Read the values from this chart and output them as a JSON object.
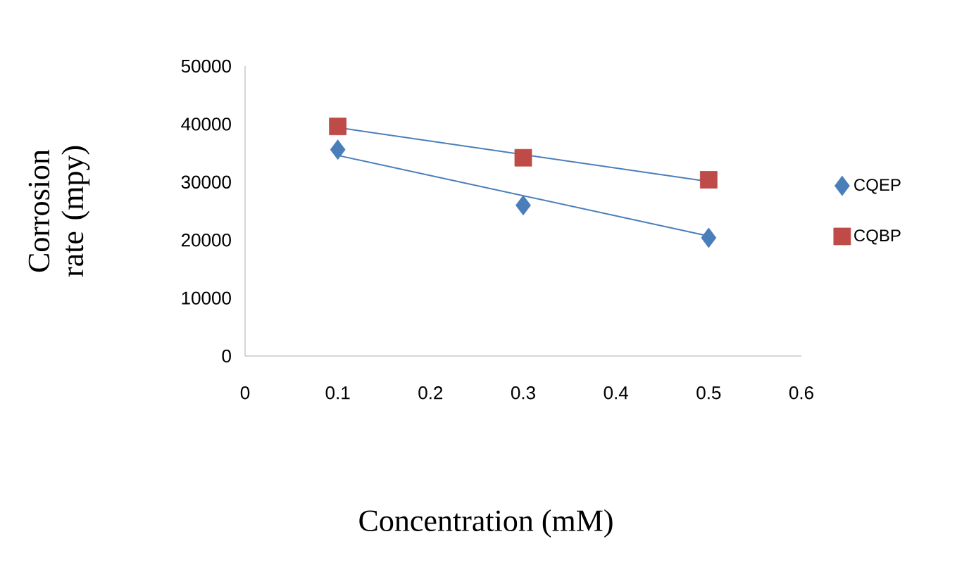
{
  "chart_data": {
    "type": "scatter",
    "xlabel": "Concentration (mM)",
    "ylabel": "Corrosion rate (mpy)",
    "xlim": [
      0,
      0.6
    ],
    "xticks": [
      0,
      0.1,
      0.2,
      0.3,
      0.4,
      0.5,
      0.6
    ],
    "ylim": [
      0,
      50000
    ],
    "yticks": [
      0,
      10000,
      20000,
      30000,
      40000,
      50000
    ],
    "grid": false,
    "legend": "right",
    "series": [
      {
        "name": "CQEP",
        "color": "#4a7ebb",
        "marker": "diamond",
        "x": [
          0.1,
          0.3,
          0.5
        ],
        "values": [
          35600,
          26000,
          20400
        ]
      },
      {
        "name": "CQBP",
        "color": "#be4b48",
        "marker": "square",
        "x": [
          0.1,
          0.3,
          0.5
        ],
        "values": [
          39600,
          34200,
          30400
        ]
      },
      {
        "type": "line",
        "color": "#4a7ebb",
        "marker": "none",
        "x": [
          0.1,
          0.5
        ],
        "values": [
          34600,
          20700
        ]
      },
      {
        "type": "line",
        "color": "#4a7ebb",
        "marker": "none",
        "x": [
          0.1,
          0.5
        ],
        "values": [
          39400,
          30100
        ]
      }
    ]
  }
}
